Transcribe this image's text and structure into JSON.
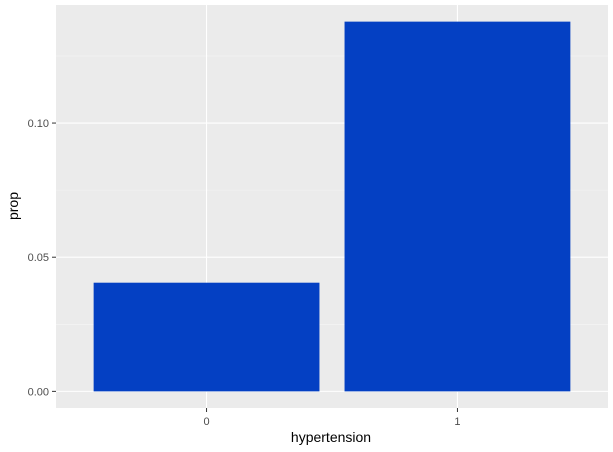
{
  "chart_data": {
    "type": "bar",
    "categories": [
      "0",
      "1"
    ],
    "values": [
      0.0405,
      0.1378
    ],
    "xlabel": "hypertension",
    "ylabel": "prop",
    "ylim": [
      -0.0062,
      0.144
    ],
    "y_ticks": [
      0.0,
      0.05,
      0.1
    ],
    "y_tick_labels": [
      "0.00",
      "0.05",
      "0.10"
    ],
    "grid": true,
    "legend": "none"
  },
  "colors": {
    "bar": "#0440c3",
    "panel_background": "#ebebeb",
    "grid_major": "#ffffff",
    "grid_minor": "#f5f5f5",
    "tick_text": "#4d4d4d",
    "tick_mark": "#333333"
  }
}
